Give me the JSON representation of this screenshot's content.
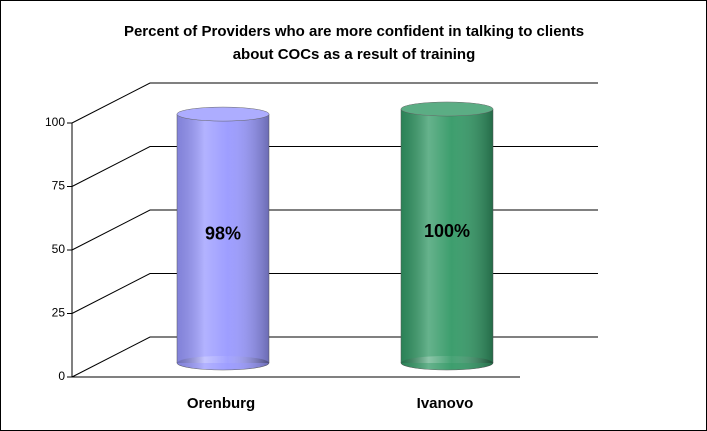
{
  "chart_data": {
    "type": "bar3d",
    "title": "Percent of Providers who are more confident in talking to clients about COCs as a result of training",
    "categories": [
      "Orenburg",
      "Ivanovo"
    ],
    "values": [
      98,
      100
    ],
    "value_labels": [
      "98%",
      "100%"
    ],
    "colors": [
      "#9999ff",
      "#339966"
    ],
    "ylim": [
      0,
      100
    ],
    "yticks": [
      0,
      25,
      50,
      75,
      100
    ],
    "grid": true
  }
}
